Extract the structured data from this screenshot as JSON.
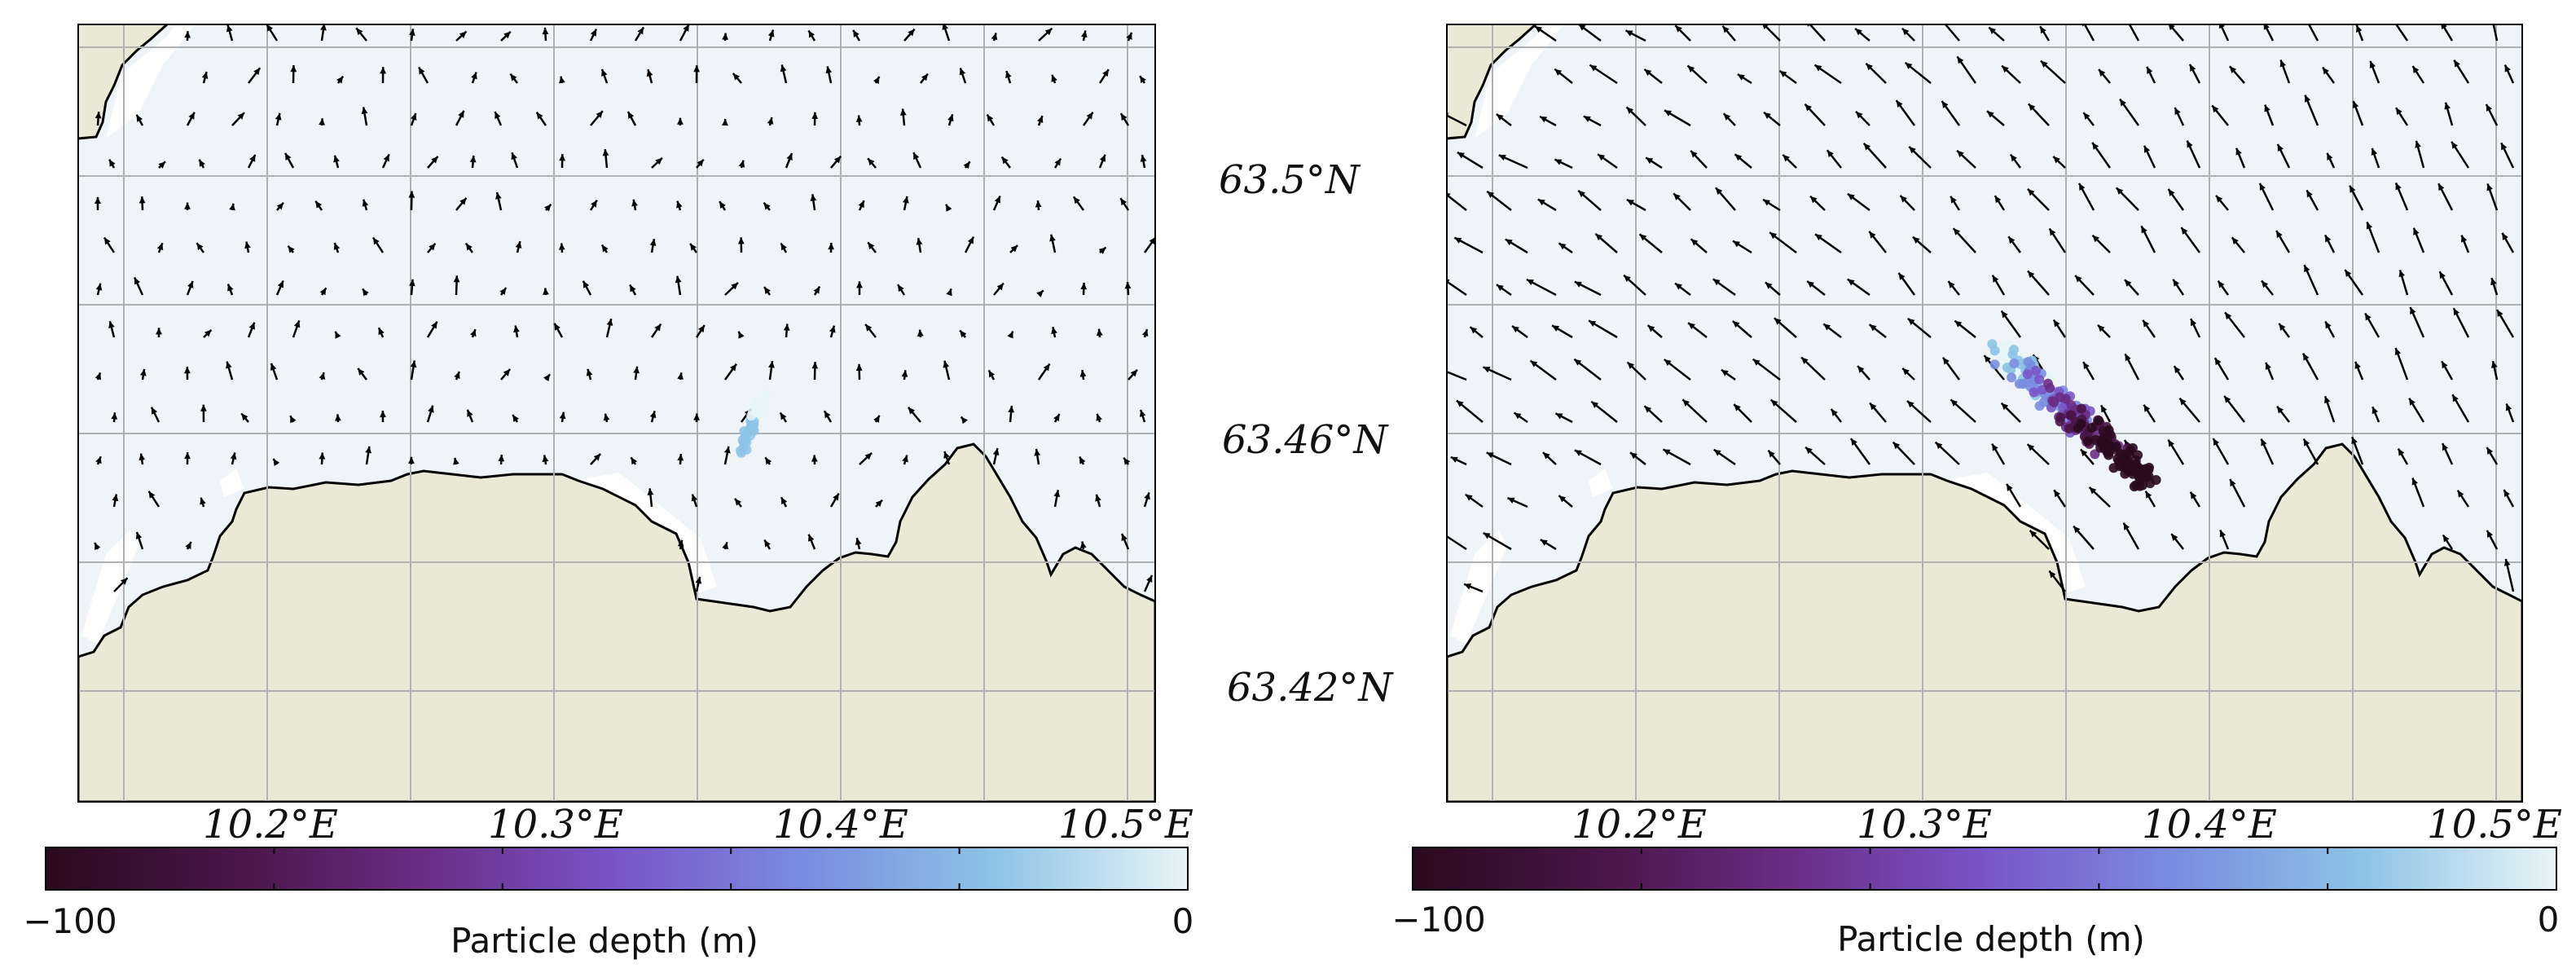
{
  "lat_labels": [
    "63.5°N",
    "63.46°N",
    "63.42°N"
  ],
  "lon_labels": [
    "10.2°E",
    "10.3°E",
    "10.4°E",
    "10.5°E"
  ],
  "colorbar": {
    "min_label": "−100",
    "max_label": "0",
    "label": "Particle depth (m)",
    "range": [
      -100,
      0
    ],
    "colormap": [
      "#2a0a1f",
      "#4a1648",
      "#6a2d86",
      "#7a55c8",
      "#7a8ee0",
      "#8cc3e6",
      "#e8f4f6"
    ]
  },
  "colors": {
    "ocean": "#eef4f7",
    "land": "#e9e9d6",
    "coastline": "#000000",
    "grid": "#b0b0b0",
    "arrow": "#000000"
  },
  "panels": [
    {
      "id": "left",
      "particles": {
        "depth_range": [
          -20,
          0
        ],
        "description_free": true
      }
    },
    {
      "id": "right",
      "particles": {
        "depth_range": [
          -100,
          0
        ]
      }
    }
  ]
}
